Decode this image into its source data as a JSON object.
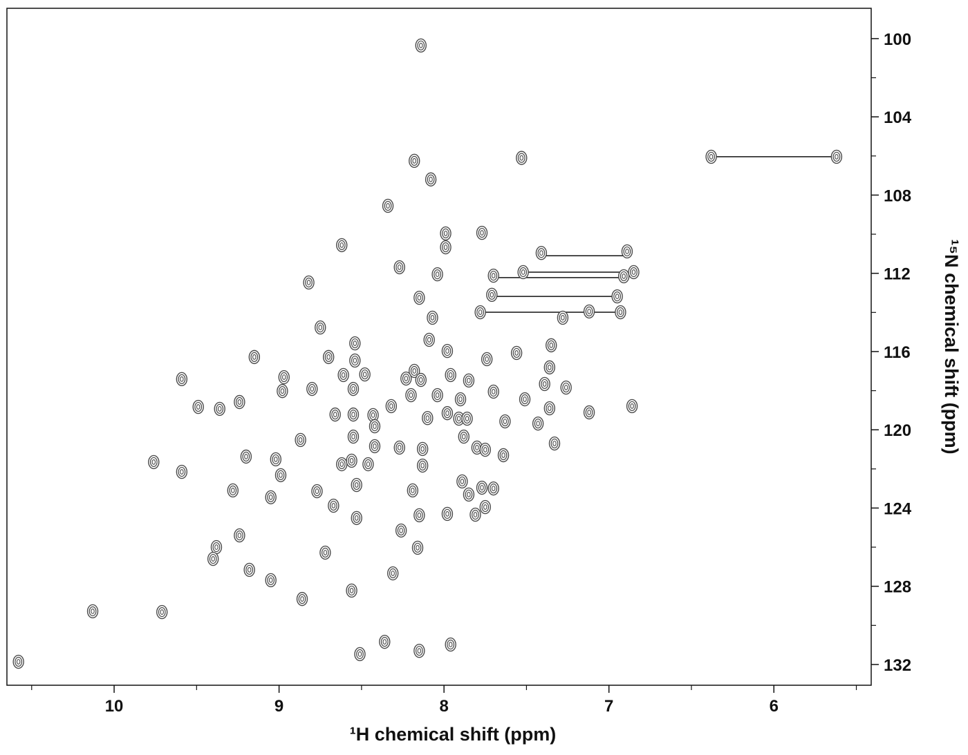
{
  "chart_data": {
    "type": "scatter",
    "x_label": "¹H chemical shift (ppm)",
    "y_label": "¹⁵N chemical shift (ppm)",
    "xlim": [
      10.65,
      5.41
    ],
    "ylim": [
      98.45,
      133.06
    ],
    "xticks": [
      10,
      9,
      8,
      7,
      6
    ],
    "xticks_minor": [
      10.5,
      9.5,
      8.5,
      7.5,
      6.5,
      5.5
    ],
    "yticks": [
      100,
      104,
      108,
      112,
      116,
      120,
      124,
      128,
      132
    ],
    "yticks_minor": [
      102,
      106,
      110,
      114,
      118,
      122,
      126,
      130
    ],
    "color": "#4a4a4a",
    "x": [
      8.14,
      8.18,
      8.08,
      7.53,
      6.38,
      5.62,
      8.34,
      7.99,
      7.77,
      7.99,
      8.62,
      7.41,
      6.89,
      8.27,
      8.04,
      7.7,
      7.52,
      6.91,
      6.85,
      8.82,
      8.15,
      7.71,
      6.95,
      7.78,
      6.93,
      7.12,
      7.28,
      8.07,
      8.75,
      8.09,
      8.54,
      7.98,
      7.35,
      7.56,
      7.74,
      9.15,
      8.7,
      8.54,
      7.36,
      9.59,
      8.97,
      8.61,
      8.48,
      8.18,
      7.96,
      8.23,
      8.14,
      8.98,
      8.8,
      8.55,
      8.2,
      8.04,
      7.9,
      7.85,
      7.7,
      7.51,
      7.26,
      7.39,
      7.36,
      9.49,
      9.36,
      9.24,
      8.32,
      8.66,
      8.55,
      8.43,
      8.55,
      8.42,
      8.1,
      7.98,
      7.91,
      7.86,
      7.63,
      7.43,
      7.12,
      6.86,
      8.87,
      8.42,
      8.27,
      8.13,
      7.88,
      7.8,
      7.75,
      7.64,
      7.33,
      9.2,
      9.76,
      9.59,
      9.02,
      8.99,
      8.62,
      8.56,
      8.46,
      8.13,
      7.89,
      8.53,
      9.28,
      8.77,
      8.19,
      7.85,
      7.77,
      7.7,
      8.67,
      7.75,
      9.05,
      8.15,
      7.98,
      7.81,
      8.53,
      9.24,
      8.26,
      9.38,
      8.16,
      8.72,
      9.4,
      9.18,
      8.31,
      9.05,
      8.86,
      8.56,
      10.13,
      9.71,
      8.36,
      8.15,
      7.96,
      8.51,
      10.58
    ],
    "values": [
      100.35,
      106.25,
      107.2,
      106.1,
      106.04,
      106.04,
      108.55,
      109.96,
      109.93,
      110.67,
      110.56,
      110.96,
      110.88,
      111.69,
      112.05,
      112.12,
      111.94,
      112.15,
      111.94,
      112.47,
      113.25,
      113.1,
      113.18,
      113.99,
      113.99,
      113.95,
      114.27,
      114.27,
      114.77,
      115.4,
      115.58,
      115.97,
      115.68,
      116.07,
      116.39,
      116.28,
      116.28,
      116.46,
      116.81,
      117.41,
      117.31,
      117.2,
      117.17,
      116.99,
      117.2,
      117.38,
      117.45,
      118.02,
      117.91,
      117.91,
      118.23,
      118.23,
      118.44,
      117.48,
      118.05,
      118.44,
      117.84,
      117.66,
      118.9,
      118.83,
      118.93,
      118.58,
      118.79,
      119.22,
      119.22,
      119.25,
      120.35,
      119.82,
      119.4,
      119.15,
      119.43,
      119.43,
      119.57,
      119.68,
      119.11,
      118.79,
      120.52,
      120.84,
      120.91,
      120.98,
      120.35,
      120.91,
      121.02,
      121.3,
      120.7,
      121.37,
      121.65,
      122.15,
      121.51,
      122.32,
      121.76,
      121.58,
      121.76,
      121.83,
      122.64,
      122.82,
      123.1,
      123.14,
      123.1,
      123.31,
      122.96,
      123.0,
      123.88,
      123.95,
      123.45,
      124.37,
      124.3,
      124.34,
      124.51,
      125.4,
      125.15,
      126.0,
      126.03,
      126.28,
      126.6,
      127.16,
      127.34,
      127.69,
      128.65,
      128.22,
      129.28,
      129.32,
      130.84,
      131.3,
      130.98,
      131.47,
      131.86
    ],
    "connectors": [
      {
        "x": [
          6.38,
          5.62
        ],
        "y": 106.04
      },
      {
        "x": [
          7.41,
          6.89
        ],
        "y": 111.1
      },
      {
        "x": [
          7.52,
          6.85
        ],
        "y": 111.94
      },
      {
        "x": [
          7.7,
          6.91
        ],
        "y": 112.22
      },
      {
        "x": [
          7.71,
          6.95
        ],
        "y": 113.18
      },
      {
        "x": [
          7.78,
          6.93
        ],
        "y": 113.99
      }
    ]
  }
}
